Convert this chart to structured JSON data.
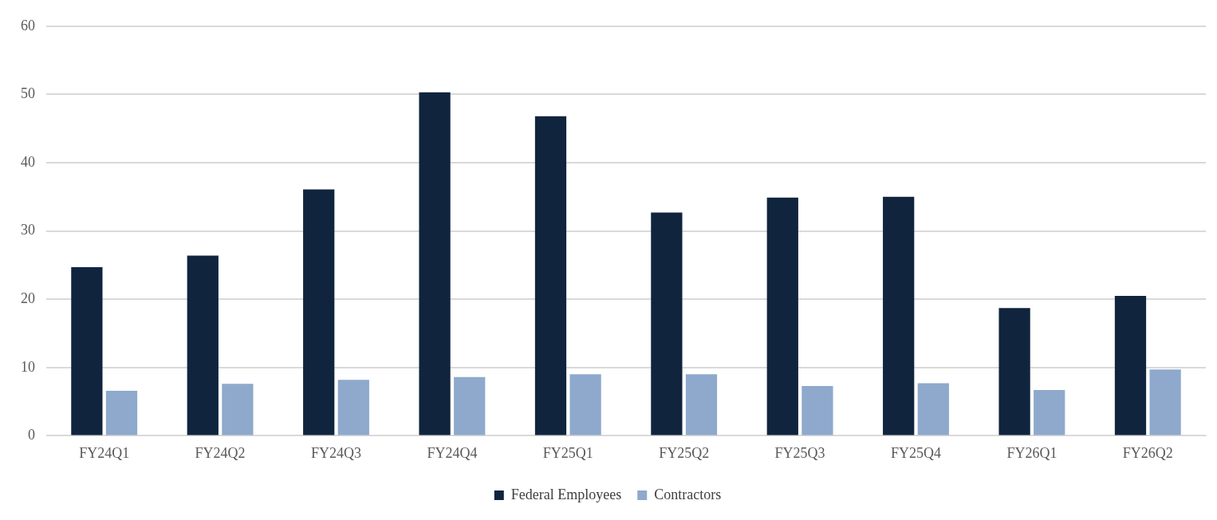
{
  "chart_data": {
    "type": "bar",
    "categories": [
      "FY24Q1",
      "FY24Q2",
      "FY24Q3",
      "FY24Q4",
      "FY25Q1",
      "FY25Q2",
      "FY25Q3",
      "FY25Q4",
      "FY26Q1",
      "FY26Q2"
    ],
    "series": [
      {
        "name": "Federal Employees",
        "color": "#10243e",
        "values": [
          24.7,
          26.4,
          36.1,
          50.3,
          46.8,
          32.7,
          34.9,
          35.0,
          18.7,
          20.5
        ]
      },
      {
        "name": "Contractors",
        "color": "#8ea9cc",
        "values": [
          6.6,
          7.6,
          8.2,
          8.6,
          9.0,
          9.0,
          7.3,
          7.7,
          6.7,
          9.7
        ]
      }
    ],
    "ylim": [
      0,
      60
    ],
    "yticks": [
      0,
      10,
      20,
      30,
      40,
      50,
      60
    ],
    "grid": "y",
    "legend": "bottom"
  }
}
